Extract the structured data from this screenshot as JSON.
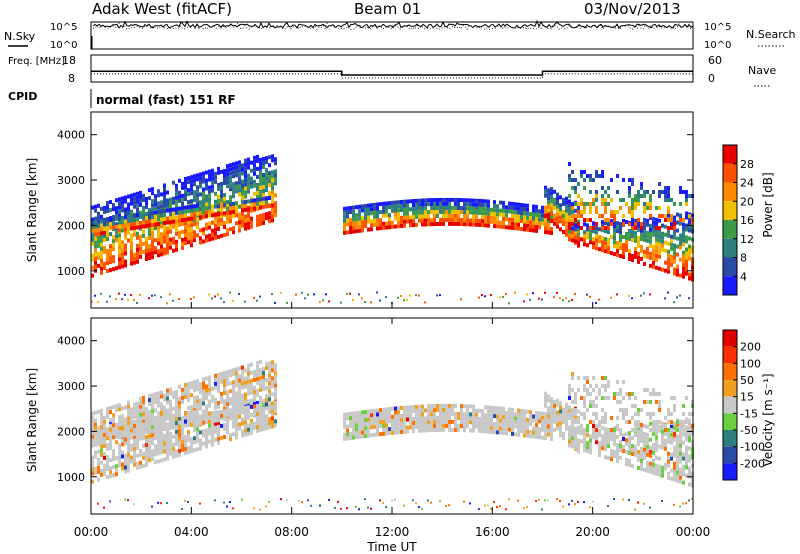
{
  "header": {
    "station": "Adak West (fitACF)",
    "beam": "Beam 01",
    "date": "03/Nov/2013"
  },
  "chart_data": [
    {
      "type": "line",
      "name_panel": "noise",
      "left_label": "N.Sky",
      "right_label": "N.Search",
      "left_ticks": [
        "10^5",
        "10^0"
      ],
      "right_ticks": [
        "10^5",
        "10^0"
      ],
      "x": [
        0,
        24
      ],
      "series": [
        {
          "name": "N.Sky",
          "style": "solid",
          "level": 0.85
        },
        {
          "name": "N.Search",
          "style": "dotted",
          "level": 0.8
        }
      ]
    },
    {
      "type": "line",
      "name_panel": "freq",
      "left_label": "Freq. [MHz]",
      "right_label": "Nave",
      "left_ticks": [
        "18",
        "8"
      ],
      "right_ticks": [
        "60",
        "0"
      ],
      "freq_steps": [
        {
          "t0": 0,
          "t1": 10,
          "v": 12.0
        },
        {
          "t0": 10,
          "t1": 18,
          "v": 10.6
        },
        {
          "t0": 18,
          "t1": 24,
          "v": 12.0
        }
      ],
      "nave_steps": [
        {
          "t0": 0,
          "t1": 10,
          "v": 18
        },
        {
          "t0": 10,
          "t1": 18,
          "v": 9
        },
        {
          "t0": 18,
          "t1": 24,
          "v": 18
        }
      ],
      "freq_range": [
        8,
        18
      ],
      "nave_range": [
        0,
        60
      ]
    },
    {
      "type": "heatmap",
      "name_panel": "power",
      "ylabel": "Slant Range [km]",
      "yticks": [
        1000,
        2000,
        3000,
        4000
      ],
      "ylim": [
        180,
        4500
      ],
      "xlim": [
        0,
        24
      ],
      "colorbar_label": "Power [dB]",
      "colorbar_ticks": [
        "4",
        "8",
        "12",
        "16",
        "20",
        "24",
        "28"
      ],
      "colors": [
        "#1a1aff",
        "#2a4aa8",
        "#2e7f7f",
        "#3c9a4a",
        "#f0c000",
        "#ff8a00",
        "#ff5000",
        "#e80000"
      ]
    },
    {
      "type": "heatmap",
      "name_panel": "velocity",
      "ylabel": "Slant Range [km]",
      "yticks": [
        1000,
        2000,
        3000,
        4000
      ],
      "ylim": [
        180,
        4500
      ],
      "xlim": [
        0,
        24
      ],
      "xticks": [
        "00:00",
        "04:00",
        "08:00",
        "12:00",
        "16:00",
        "20:00",
        "00:00"
      ],
      "xlabel": "Time UT",
      "colorbar_label": "Velocity [m s⁻¹]",
      "colorbar_ticks": [
        "200",
        "100",
        "50",
        "15",
        "-15",
        "-50",
        "-100",
        "-200"
      ],
      "colors": [
        "#1a1aff",
        "#2a4aa8",
        "#2e7f7f",
        "#6ad040",
        "#c8c8c8",
        "#f0a020",
        "#ff7000",
        "#ff3000",
        "#e00000"
      ]
    }
  ],
  "cpid": {
    "label": "CPID",
    "text": "normal (fast) 151 RF"
  }
}
